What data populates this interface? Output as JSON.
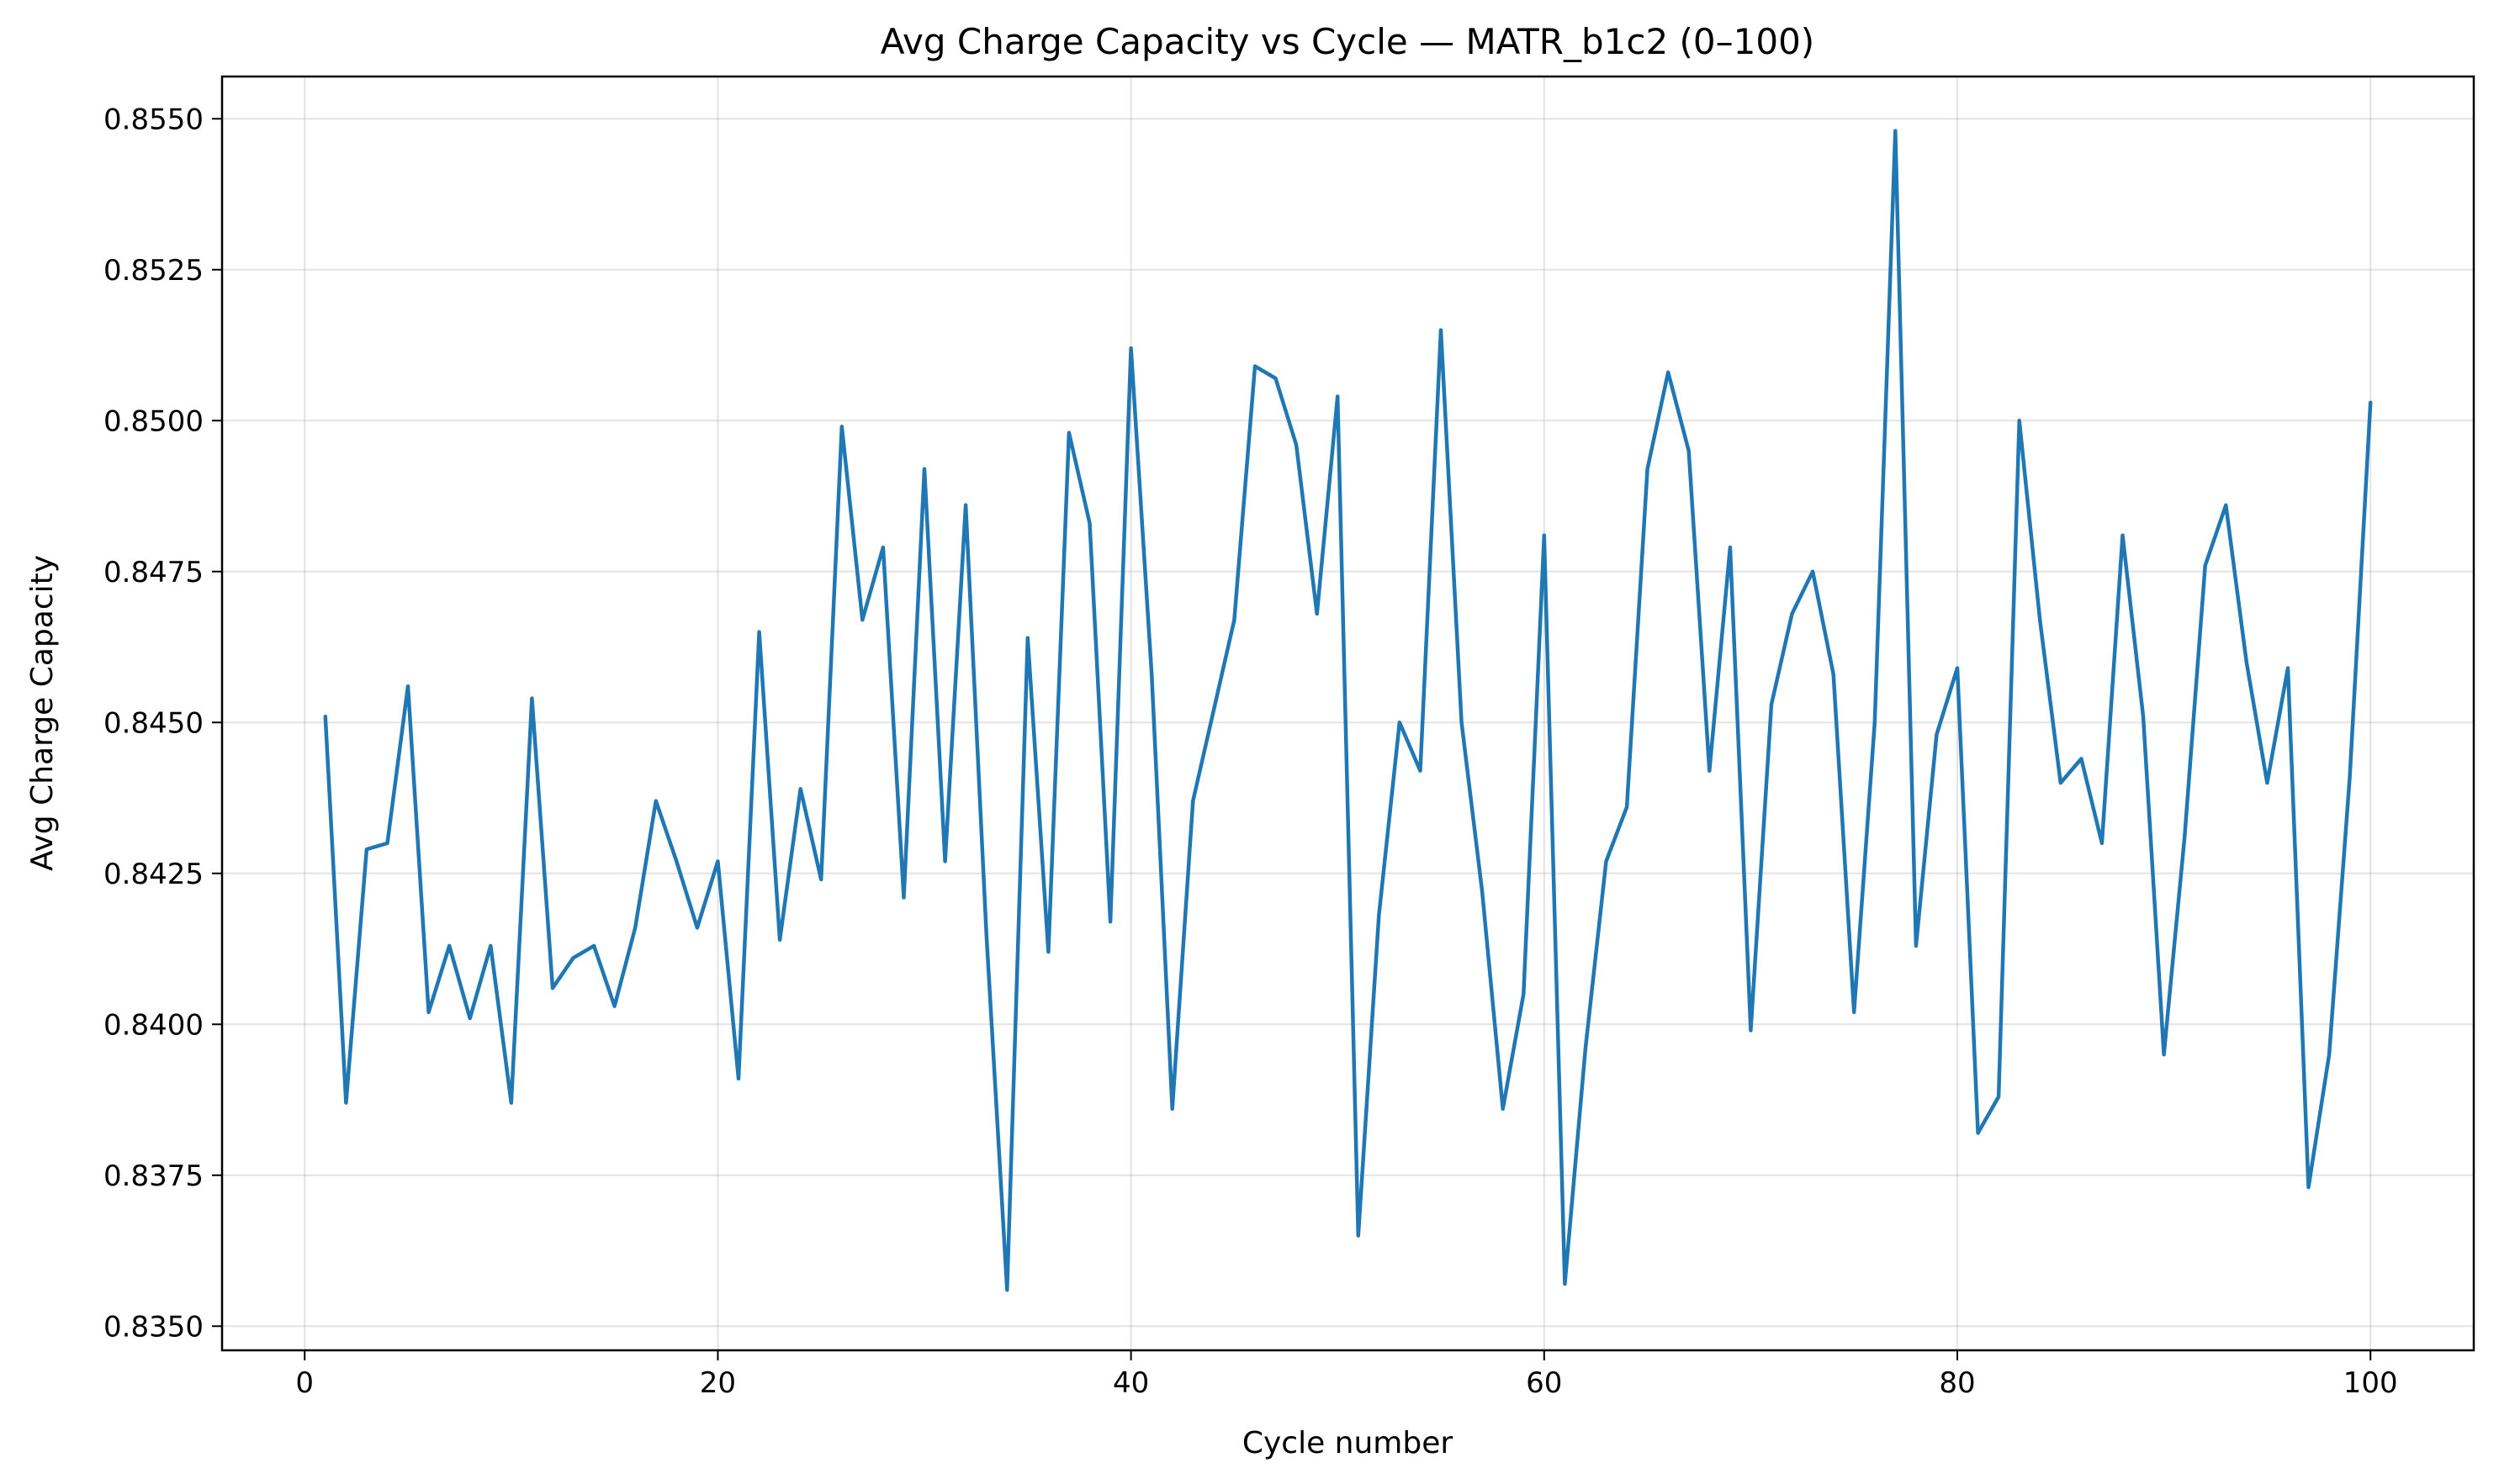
{
  "chart_data": {
    "type": "line",
    "title": "Avg Charge Capacity vs Cycle — MATR_b1c2 (0–100)",
    "xlabel": "Cycle number",
    "ylabel": "Avg Charge Capacity",
    "xlim": [
      -4,
      105
    ],
    "ylim": [
      0.8346,
      0.8557
    ],
    "x_ticks": [
      0,
      20,
      40,
      60,
      80,
      100
    ],
    "y_ticks": [
      0.835,
      0.8375,
      0.84,
      0.8425,
      0.845,
      0.8475,
      0.85,
      0.8525,
      0.855
    ],
    "x_tick_labels": [
      "0",
      "20",
      "40",
      "60",
      "80",
      "100"
    ],
    "y_tick_labels": [
      "0.8350",
      "0.8375",
      "0.8400",
      "0.8425",
      "0.8450",
      "0.8475",
      "0.8500",
      "0.8525",
      "0.8550"
    ],
    "grid": true,
    "color": "#1f77b4",
    "series": [
      {
        "x": [
          1,
          2,
          3,
          4,
          5,
          6,
          7,
          8,
          9,
          10,
          11,
          12,
          13,
          14,
          15,
          16,
          17,
          18,
          19,
          20,
          21,
          22,
          23,
          24,
          25,
          26,
          27,
          28,
          29,
          30,
          31,
          32,
          33,
          34,
          35,
          36,
          37,
          38,
          39,
          40,
          41,
          42,
          43,
          44,
          45,
          46,
          47,
          48,
          49,
          50,
          51,
          52,
          53,
          54,
          55,
          56,
          57,
          58,
          59,
          60,
          61,
          62,
          63,
          64,
          65,
          66,
          67,
          68,
          69,
          70,
          71,
          72,
          73,
          74,
          75,
          76,
          77,
          78,
          79,
          80,
          81,
          82,
          83,
          84,
          85,
          86,
          87,
          88,
          89,
          90,
          91,
          92,
          93,
          94,
          95,
          96,
          97,
          98,
          99,
          100
        ],
        "values": [
          0.8451,
          0.8387,
          0.8429,
          0.843,
          0.8456,
          0.8402,
          0.8413,
          0.8401,
          0.8413,
          0.8387,
          0.8454,
          0.8406,
          0.8411,
          0.8413,
          0.8403,
          0.8416,
          0.8437,
          0.8427,
          0.8416,
          0.8427,
          0.8391,
          0.8465,
          0.8414,
          0.8439,
          0.8424,
          0.8499,
          0.8467,
          0.8479,
          0.8421,
          0.8492,
          0.8427,
          0.8486,
          0.8415,
          0.8356,
          0.8464,
          0.8412,
          0.8498,
          0.8483,
          0.8417,
          0.8512,
          0.8458,
          0.8386,
          0.8437,
          0.8452,
          0.8467,
          0.8509,
          0.8507,
          0.8496,
          0.8468,
          0.8504,
          0.8365,
          0.8418,
          0.845,
          0.8442,
          0.8515,
          0.845,
          0.8422,
          0.8386,
          0.8405,
          0.8481,
          0.8357,
          0.8396,
          0.8427,
          0.8436,
          0.8492,
          0.8508,
          0.8495,
          0.8442,
          0.8479,
          0.8399,
          0.8453,
          0.8468,
          0.8475,
          0.8458,
          0.8402,
          0.845,
          0.8548,
          0.8413,
          0.8448,
          0.8459,
          0.8382,
          0.8388,
          0.85,
          0.8467,
          0.844,
          0.8444,
          0.843,
          0.8481,
          0.8451,
          0.8395,
          0.8431,
          0.8476,
          0.8486,
          0.846,
          0.844,
          0.8459,
          0.8373,
          0.8395,
          0.8441,
          0.8503
        ]
      }
    ]
  }
}
